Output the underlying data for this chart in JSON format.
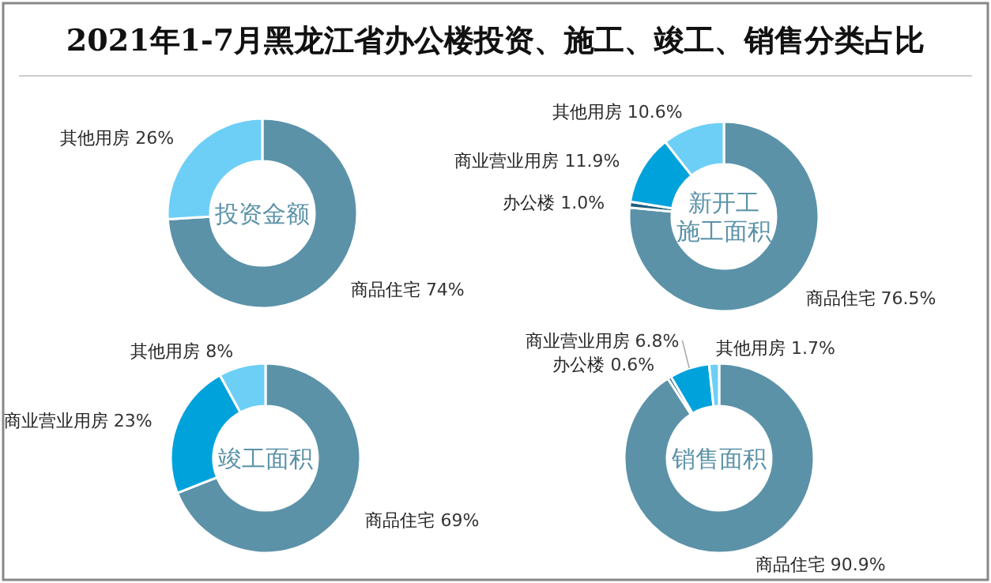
{
  "chart_data": [
    {
      "type": "donut",
      "title": "2021年1-7月黑龙江省办公楼投资、施工、竣工、销售分类占比",
      "subtitle": "投资金额",
      "categories": [
        "商品住宅",
        "其他用房"
      ],
      "values": [
        74,
        26
      ],
      "colors": [
        "#5b92a8",
        "#6dcff6"
      ],
      "value_labels": [
        "74%",
        "26%"
      ]
    },
    {
      "type": "donut",
      "subtitle": "新开工施工面积",
      "categories": [
        "商品住宅",
        "办公楼",
        "商业营业用房",
        "其他用房"
      ],
      "values": [
        76.5,
        1.0,
        11.9,
        10.6
      ],
      "colors": [
        "#5b92a8",
        "#1d5f7c",
        "#00a2db",
        "#6dcff6"
      ],
      "value_labels": [
        "76.5%",
        "1.0%",
        "11.9%",
        "10.6%"
      ]
    },
    {
      "type": "donut",
      "subtitle": "竣工面积",
      "categories": [
        "商品住宅",
        "商业营业用房",
        "其他用房"
      ],
      "values": [
        69,
        23,
        8
      ],
      "colors": [
        "#5b92a8",
        "#00a2db",
        "#6dcff6"
      ],
      "value_labels": [
        "69%",
        "23%",
        "8%"
      ]
    },
    {
      "type": "donut",
      "subtitle": "销售面积",
      "categories": [
        "商品住宅",
        "办公楼",
        "商业营业用房",
        "其他用房"
      ],
      "values": [
        90.9,
        0.6,
        6.8,
        1.7
      ],
      "colors": [
        "#5b92a8",
        "#1d5f7c",
        "#00a2db",
        "#6dcff6"
      ],
      "value_labels": [
        "90.9%",
        "0.6%",
        "6.8%",
        "1.7%"
      ]
    }
  ]
}
